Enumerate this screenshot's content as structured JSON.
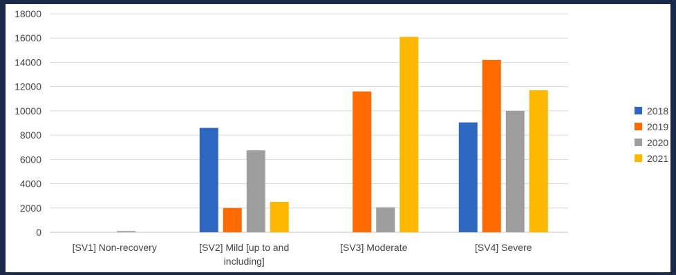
{
  "chart_data": {
    "type": "bar",
    "categories": [
      "[SV1] Non-recovery",
      "[SV2] Mild [up to and including]",
      "[SV3] Moderate",
      "[SV4] Severe"
    ],
    "category_lines": [
      [
        "[SV1] Non-recovery"
      ],
      [
        "[SV2] Mild [up to and",
        "including]"
      ],
      [
        "[SV3] Moderate"
      ],
      [
        "[SV4] Severe"
      ]
    ],
    "series": [
      {
        "name": "2018",
        "color": "#2e67c2",
        "values": [
          0,
          8600,
          0,
          9050
        ]
      },
      {
        "name": "2019",
        "color": "#ff6a00",
        "values": [
          0,
          2000,
          11600,
          14200
        ]
      },
      {
        "name": "2020",
        "color": "#9e9e9e",
        "values": [
          100,
          6750,
          2050,
          10000
        ]
      },
      {
        "name": "2021",
        "color": "#ffb700",
        "values": [
          0,
          2500,
          16100,
          11700
        ]
      }
    ],
    "yticks": [
      "0",
      "2000",
      "4000",
      "6000",
      "8000",
      "10000",
      "12000",
      "14000",
      "16000",
      "18000"
    ],
    "ylim": [
      0,
      18000
    ],
    "grid": true,
    "legend_position": "right",
    "title": "",
    "xlabel": "",
    "ylabel": ""
  }
}
